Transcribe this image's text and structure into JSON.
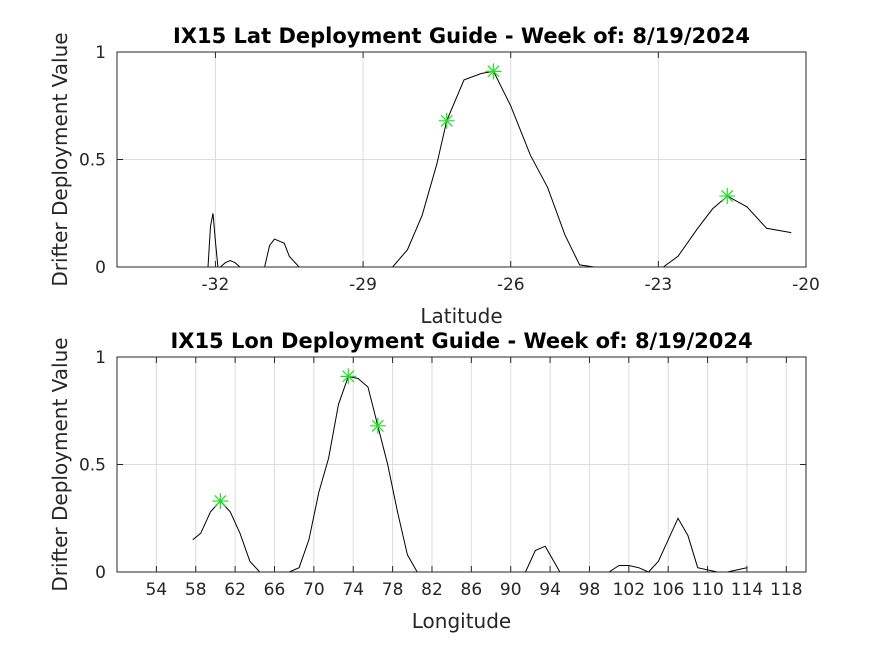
{
  "chart_data": [
    {
      "type": "line",
      "title": "IX15 Lat Deployment Guide - Week of: 8/19/2024",
      "xlabel": "Latitude",
      "ylabel": "Drifter Deployment Value",
      "xlim": [
        -34,
        -20
      ],
      "ylim": [
        0,
        1
      ],
      "xticks": [
        -32,
        -29,
        -26,
        -23,
        -20
      ],
      "xtick_labels": [
        "-32",
        "-29",
        "-26",
        "-23",
        "-20"
      ],
      "yticks": [
        0,
        0.5,
        1
      ],
      "ytick_labels": [
        "0",
        "0.5",
        "1"
      ],
      "grid": true,
      "series": [
        {
          "style": "line",
          "color": "#000000",
          "x": [
            -34,
            -32.15,
            -32.1,
            -32.05,
            -32.0,
            -31.95,
            -31.9,
            -31.8,
            -31.7,
            -31.6,
            -31.5,
            -31.0,
            -30.9,
            -30.8,
            -30.6,
            -30.5,
            -30.3,
            -28.4,
            -28.1,
            -27.8,
            -27.5,
            -27.3,
            -26.95,
            -26.6,
            -26.35,
            -26.0,
            -25.6,
            -25.25,
            -24.9,
            -24.6,
            -24.3,
            -22.9,
            -22.6,
            -22.2,
            -21.9,
            -21.6,
            -21.2,
            -20.8,
            -20.3
          ],
          "y": [
            0,
            0,
            0.19,
            0.25,
            0.12,
            0,
            0,
            0.02,
            0.03,
            0.02,
            0,
            0,
            0.1,
            0.13,
            0.11,
            0.05,
            0,
            0,
            0.08,
            0.24,
            0.48,
            0.68,
            0.87,
            0.9,
            0.91,
            0.75,
            0.52,
            0.37,
            0.15,
            0.01,
            0,
            0,
            0.05,
            0.18,
            0.27,
            0.33,
            0.28,
            0.18,
            0.16
          ]
        },
        {
          "style": "markers",
          "marker": "*",
          "color": "#22dd22",
          "x": [
            -27.3,
            -26.35,
            -21.6
          ],
          "y": [
            0.68,
            0.91,
            0.33
          ]
        }
      ]
    },
    {
      "type": "line",
      "title": "IX15 Lon Deployment Guide - Week of: 8/19/2024",
      "xlabel": "Longitude",
      "ylabel": "Drifter Deployment Value",
      "xlim": [
        50,
        120
      ],
      "ylim": [
        0,
        1
      ],
      "xticks": [
        54,
        58,
        62,
        66,
        70,
        74,
        78,
        82,
        86,
        90,
        94,
        98,
        102,
        106,
        110,
        114,
        118
      ],
      "xtick_labels": [
        "54",
        "58",
        "62",
        "66",
        "70",
        "74",
        "78",
        "82",
        "86",
        "90",
        "94",
        "98",
        "102",
        "106",
        "110",
        "114",
        "118"
      ],
      "yticks": [
        0,
        0.5,
        1
      ],
      "ytick_labels": [
        "0",
        "0.5",
        "1"
      ],
      "grid": true,
      "series": [
        {
          "style": "line",
          "color": "#000000",
          "x": [
            57.7,
            58.5,
            59.5,
            60.5,
            61.5,
            62.5,
            63.5,
            64.5,
            67.5,
            68.5,
            69.5,
            70.5,
            71.5,
            72.5,
            73.5,
            74.5,
            75.5,
            76.5,
            77.5,
            78.5,
            79.5,
            80.5,
            91.5,
            92.5,
            93.5,
            95,
            100,
            101,
            102,
            103,
            104,
            105,
            106,
            107,
            108,
            109,
            111,
            112,
            113,
            114
          ],
          "y": [
            0.15,
            0.18,
            0.28,
            0.33,
            0.28,
            0.18,
            0.05,
            0,
            0,
            0.02,
            0.15,
            0.37,
            0.53,
            0.78,
            0.91,
            0.9,
            0.86,
            0.68,
            0.5,
            0.28,
            0.08,
            0,
            0,
            0.1,
            0.12,
            0,
            0,
            0.03,
            0.03,
            0.02,
            0,
            0.05,
            0.15,
            0.25,
            0.17,
            0.02,
            0,
            0,
            0.01,
            0.02
          ]
        },
        {
          "style": "markers",
          "marker": "*",
          "color": "#22dd22",
          "x": [
            60.5,
            73.5,
            76.5
          ],
          "y": [
            0.33,
            0.91,
            0.68
          ]
        }
      ]
    }
  ]
}
